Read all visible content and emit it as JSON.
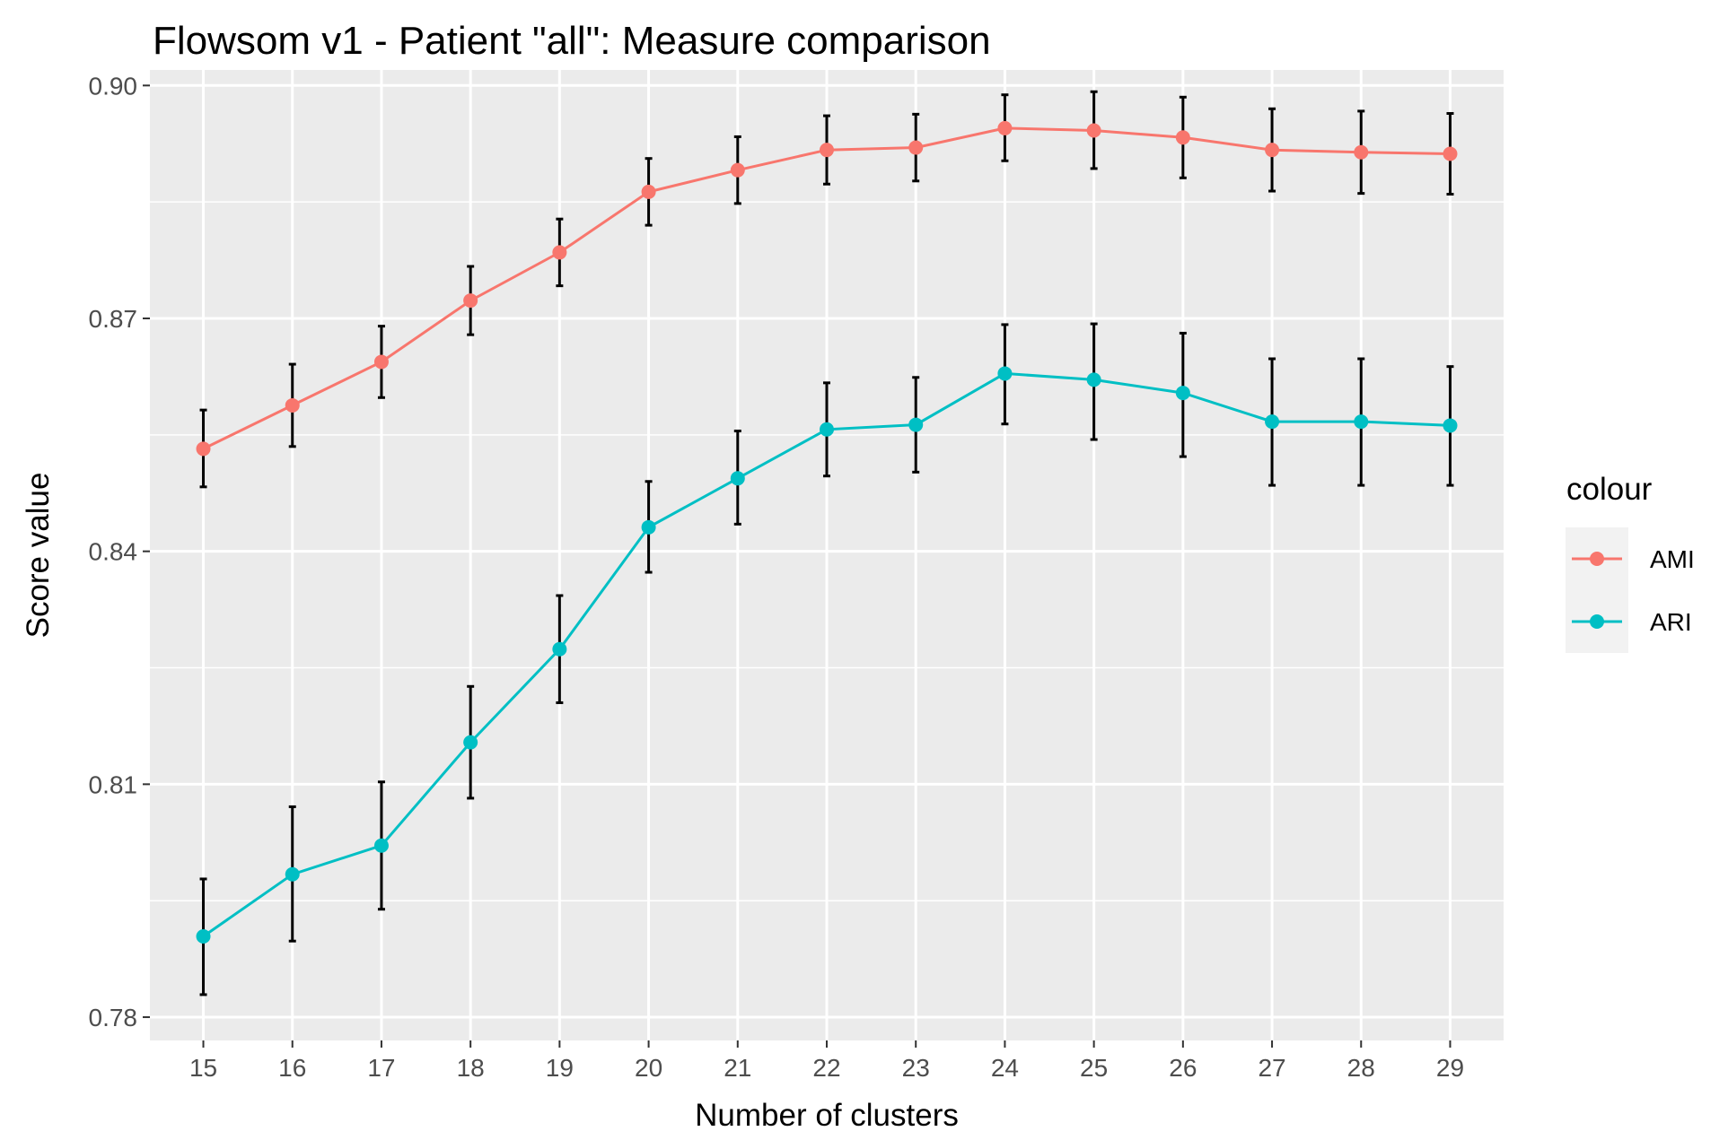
{
  "chart_data": {
    "type": "line",
    "title": "Flowsom v1 - Patient \"all\": Measure comparison",
    "xlabel": "Number of clusters",
    "ylabel": "Score value",
    "x": [
      15,
      16,
      17,
      18,
      19,
      20,
      21,
      22,
      23,
      24,
      25,
      26,
      27,
      28,
      29
    ],
    "ylim": [
      0.777,
      0.902
    ],
    "yticks": [
      0.78,
      0.81,
      0.84,
      0.87,
      0.9
    ],
    "ytick_labels": [
      "0.78",
      "0.81",
      "0.84",
      "0.87",
      "0.90"
    ],
    "grid": true,
    "legend": {
      "title": "colour",
      "position": "right"
    },
    "series": [
      {
        "name": "AMI",
        "color": "#f8766d",
        "values": [
          0.8532,
          0.8588,
          0.8644,
          0.8723,
          0.8785,
          0.8863,
          0.8891,
          0.8917,
          0.892,
          0.8945,
          0.8942,
          0.8933,
          0.8917,
          0.8914,
          0.8912
        ],
        "err_low": [
          0.8483,
          0.8535,
          0.8598,
          0.8679,
          0.8742,
          0.882,
          0.8848,
          0.8873,
          0.8877,
          0.8903,
          0.8893,
          0.8881,
          0.8864,
          0.8861,
          0.886
        ],
        "err_high": [
          0.8582,
          0.8641,
          0.869,
          0.8767,
          0.8828,
          0.8906,
          0.8934,
          0.8961,
          0.8963,
          0.8988,
          0.8992,
          0.8985,
          0.897,
          0.8967,
          0.8964
        ]
      },
      {
        "name": "ARI",
        "color": "#00bfc4",
        "values": [
          0.7904,
          0.7984,
          0.8021,
          0.8154,
          0.8274,
          0.8431,
          0.8494,
          0.8557,
          0.8563,
          0.8629,
          0.8621,
          0.8604,
          0.8567,
          0.8567,
          0.8562
        ],
        "err_low": [
          0.7829,
          0.7898,
          0.7939,
          0.8082,
          0.8205,
          0.8373,
          0.8435,
          0.8497,
          0.8502,
          0.8564,
          0.8544,
          0.8522,
          0.8485,
          0.8485,
          0.8485
        ],
        "err_high": [
          0.7978,
          0.8071,
          0.8103,
          0.8226,
          0.8343,
          0.849,
          0.8555,
          0.8617,
          0.8624,
          0.8692,
          0.8693,
          0.8681,
          0.8648,
          0.8648,
          0.8638
        ]
      }
    ]
  }
}
